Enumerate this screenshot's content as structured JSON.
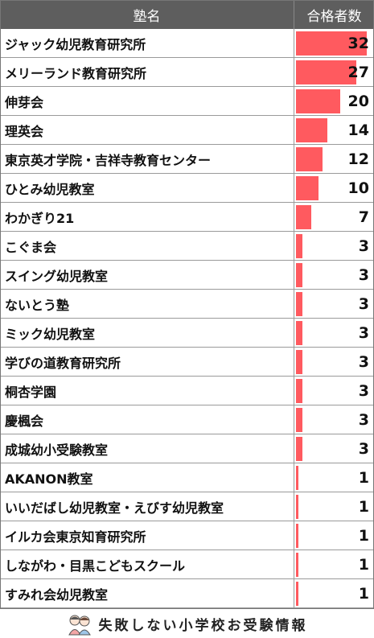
{
  "header": {
    "name_label": "塾名",
    "count_label": "合格者数"
  },
  "chart_data": {
    "type": "bar",
    "orientation": "horizontal",
    "categories": [
      "ジャック幼児教育研究所",
      "メリーランド教育研究所",
      "伸芽会",
      "理英会",
      "東京英才学院・吉祥寺教育センター",
      "ひとみ幼児教室",
      "わかぎり21",
      "こぐま会",
      "スイング幼児教室",
      "ないとう塾",
      "ミック幼児教室",
      "学びの道教育研究所",
      "桐杏学園",
      "慶楓会",
      "成城幼小受験教室",
      "AKANON教室",
      "いいだばし幼児教室・えびす幼児教室",
      "イルカ会東京知育研究所",
      "しながわ・目黒こどもスクール",
      "すみれ会幼児教室"
    ],
    "values": [
      32,
      27,
      20,
      14,
      12,
      10,
      7,
      3,
      3,
      3,
      3,
      3,
      3,
      3,
      3,
      1,
      1,
      1,
      1,
      1
    ],
    "xlim": [
      0,
      34
    ],
    "bar_color": "#ff5a5f"
  },
  "footer": {
    "brand_text": "失敗しない小学校お受験情報"
  }
}
